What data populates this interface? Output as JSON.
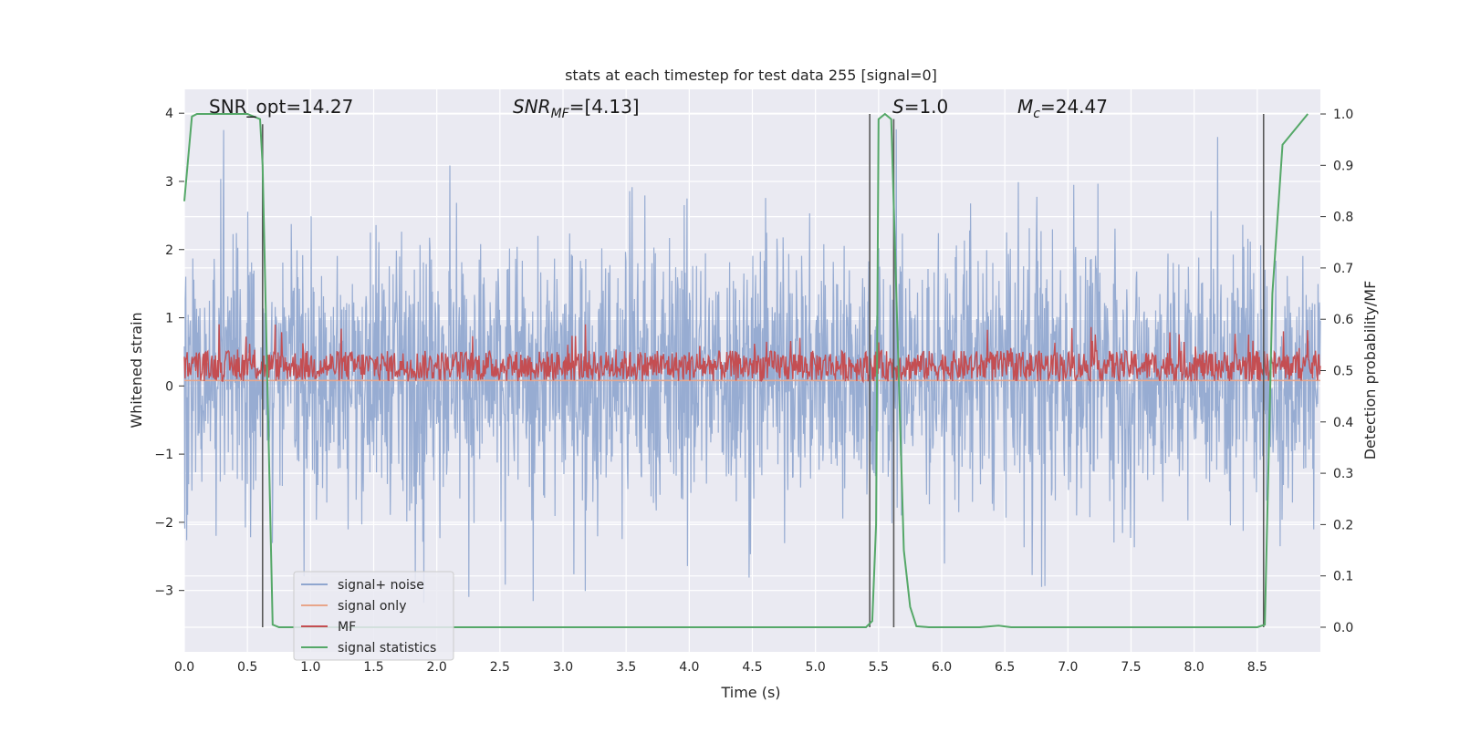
{
  "chart_data": {
    "type": "line",
    "title": "stats at each timestep for test data 255 [signal=0]",
    "xlabel": "Time (s)",
    "ylabel_left": "Whitened strain",
    "ylabel_right": "Detection probability/MF",
    "xlim": [
      0.0,
      9.0
    ],
    "ylim_left": [
      -3.9,
      4.35
    ],
    "ylim_right": [
      -0.048,
      1.048
    ],
    "x_ticks": [
      "0.0",
      "0.5",
      "1.0",
      "1.5",
      "2.0",
      "2.5",
      "3.0",
      "3.5",
      "4.0",
      "4.5",
      "5.0",
      "5.5",
      "6.0",
      "6.5",
      "7.0",
      "7.5",
      "8.0",
      "8.5"
    ],
    "y_left_ticks": [
      "4",
      "3",
      "2",
      "1",
      "0",
      "−1",
      "−2",
      "−3"
    ],
    "y_right_ticks": [
      "1.0",
      "0.9",
      "0.8",
      "0.7",
      "0.6",
      "0.5",
      "0.4",
      "0.3",
      "0.2",
      "0.1",
      "0.0"
    ],
    "annotations": [
      {
        "label": "SNR_opt=14.27",
        "italic": false
      },
      {
        "label": "SNR",
        "sub": "MF",
        "suffix": "=[4.13]",
        "italic": true
      },
      {
        "label": "S",
        "suffix": "=1.0",
        "italic": true
      },
      {
        "label": "M",
        "sub": "c",
        "suffix": "=24.47",
        "italic": true
      }
    ],
    "grid": true,
    "legend_position": "lower-left",
    "background_color": "#eaeaf2",
    "series": [
      {
        "name": "signal+ noise",
        "color": "#8fa6cf",
        "axis": "left",
        "description_values": {
          "band_low": -1.3,
          "band_high": 1.7,
          "peak_min": -3.55,
          "peak_max": 4.0
        }
      },
      {
        "name": "signal only",
        "color": "#e8a58a",
        "axis": "left",
        "values_constant": 0.08
      },
      {
        "name": "MF",
        "color": "#c44e52",
        "axis": "right",
        "description_values": {
          "baseline": 0.5,
          "low": 0.46,
          "high": 0.59
        }
      },
      {
        "name": "signal statistics",
        "color": "#55a868",
        "axis": "right",
        "x": [
          0.0,
          0.06,
          0.1,
          0.2,
          0.5,
          0.6,
          0.62,
          0.7,
          0.75,
          1.0,
          5.4,
          5.45,
          5.48,
          5.5,
          5.55,
          5.6,
          5.7,
          5.75,
          5.8,
          5.9,
          6.3,
          6.45,
          6.55,
          7.0,
          8.5,
          8.56,
          8.62,
          8.7,
          8.9
        ],
        "y": [
          0.83,
          0.995,
          1.0,
          1.0,
          1.0,
          0.99,
          0.9,
          0.005,
          0.0,
          0.0,
          0.0,
          0.012,
          0.2,
          0.99,
          1.0,
          0.99,
          0.15,
          0.04,
          0.002,
          0.0,
          0.0,
          0.003,
          0.0,
          0.0,
          0.0,
          0.005,
          0.65,
          0.94,
          1.0
        ]
      },
      {
        "name": "",
        "color": "#595959",
        "axis": "right",
        "kind": "vertical-markers",
        "x": [
          0.62,
          5.43,
          5.62,
          8.55
        ],
        "ranges": [
          [
            0.0,
            0.98
          ],
          [
            0.0,
            1.0
          ],
          [
            0.0,
            0.99
          ],
          [
            0.0,
            1.0
          ]
        ]
      }
    ]
  }
}
